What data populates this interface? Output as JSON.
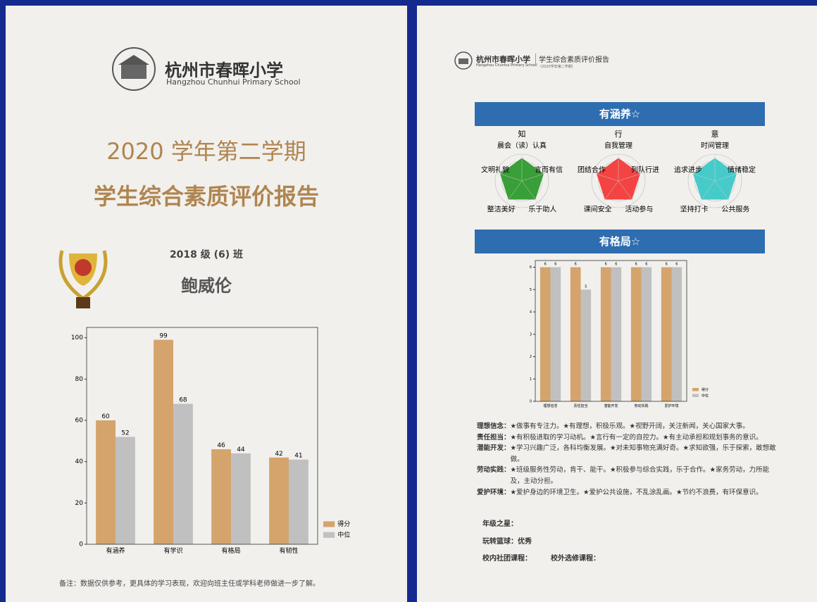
{
  "left_page": {
    "school_name": "杭州市春晖小学",
    "school_name_en": "Hangzhou Chunhui Primary School",
    "title_line1": "2020 学年第二学期",
    "title_line2": "学生综合素质评价报告",
    "class": "2018 级 (6) 班",
    "student_name": "鲍威伦",
    "chart": {
      "type": "bar",
      "categories": [
        "有涵养",
        "有学识",
        "有格局",
        "有韧性"
      ],
      "series": [
        {
          "name": "得分",
          "color": "#d4a46c",
          "values": [
            60,
            99,
            46,
            42
          ]
        },
        {
          "name": "中位",
          "color": "#c0c0c0",
          "values": [
            52,
            68,
            44,
            41
          ]
        }
      ],
      "ylim": [
        0,
        105
      ],
      "yticks": [
        0,
        20,
        40,
        60,
        80,
        100
      ],
      "legend": "lower right"
    },
    "note": "备注：数据仅供参考，更具体的学习表现，欢迎向班主任或学科老师做进一步了解。"
  },
  "right_page": {
    "header": {
      "school_name": "杭州市春晖小学",
      "school_name_en": "Hangzhou Chunhui Primary School",
      "report_title": "学生综合素质评价报告",
      "term": "（2020学年第二学期）"
    },
    "section1_title": "有涵养☆",
    "radar_charts": [
      {
        "type": "radar",
        "title": "知",
        "categories": [
          "晨会（读）认真",
          "言而有信",
          "乐于助人",
          "整洁美好",
          "文明礼貌"
        ],
        "values": [
          6,
          6,
          6,
          6,
          6
        ],
        "color": "#2e9a2e",
        "rlim": [
          0,
          7
        ]
      },
      {
        "type": "radar",
        "title": "行",
        "categories": [
          "自我管理",
          "列队行进",
          "活动参与",
          "课间安全",
          "团结合作"
        ],
        "values": [
          6,
          6,
          6,
          6,
          6
        ],
        "color": "#f23a3a",
        "rlim": [
          0,
          7
        ]
      },
      {
        "type": "radar",
        "title": "意",
        "categories": [
          "时间管理",
          "情绪稳定",
          "公共服务",
          "坚持打卡",
          "追求进步"
        ],
        "values": [
          6,
          6,
          6,
          6,
          6
        ],
        "color": "#3cc8c8",
        "rlim": [
          0,
          7
        ]
      }
    ],
    "section2_title": "有格局☆",
    "chart": {
      "type": "bar",
      "categories": [
        "理想信念",
        "责任担当",
        "潜能开发",
        "劳动实践",
        "爱护环境"
      ],
      "series": [
        {
          "name": "得分",
          "color": "#d4a46c",
          "values": [
            6,
            6,
            6,
            6,
            6
          ]
        },
        {
          "name": "中位",
          "color": "#c0c0c0",
          "values": [
            6,
            5,
            6,
            6,
            6
          ]
        }
      ],
      "ylim": [
        0,
        6.3
      ],
      "yticks": [
        0,
        1,
        2,
        3,
        4,
        5,
        6
      ],
      "legend": "lower right"
    },
    "descriptions": [
      {
        "label": "理想信念：",
        "text": "★做事有专注力。★有理想，积极乐观。★视野开阔，关注新闻，关心国家大事。"
      },
      {
        "label": "责任担当：",
        "text": "★有积极进取的学习动机。★言行有一定的自控力。★有主动承担和规划事务的意识。"
      },
      {
        "label": "潜能开发：",
        "text": "★学习兴趣广泛，各科均衡发展。★对未知事物充满好奇。★求知欲强，乐于探索，敢想敢做。"
      },
      {
        "label": "劳动实践：",
        "text": "★班级服务性劳动，肯干、能干。★积极参与综合实践，乐于合作。★家务劳动，力所能及，主动分担。"
      },
      {
        "label": "爱护环境：",
        "text": "★爱护身边的环境卫生。★爱护公共设施，不乱涂乱画。★节约不浪费，有环保意识。"
      }
    ],
    "footer": {
      "star": "年级之星：",
      "basketball": "玩转篮球：优秀",
      "club": "校内社团课程：",
      "elective": "校外选修课程："
    }
  }
}
